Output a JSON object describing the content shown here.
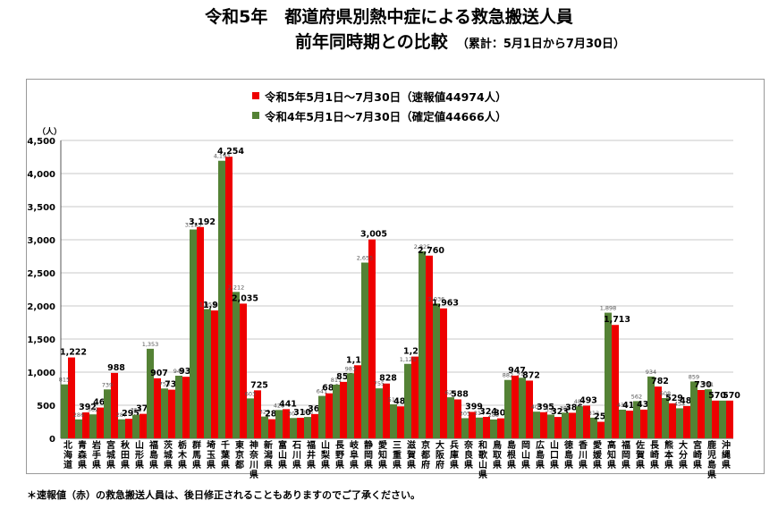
{
  "header": {
    "title_line1": "令和5年　都道府県別熱中症による救急搬送人員",
    "title_line2": "前年同時期との比較",
    "title_note": "（累計：5月1日から7月30日）"
  },
  "legend": {
    "items": [
      {
        "label": "令和5年5月1日～7月30日（速報値44974人）",
        "color": "#ee0000"
      },
      {
        "label": "令和4年5月1日～7月30日（確定値44666人）",
        "color": "#548235"
      }
    ]
  },
  "footnote": "＊速報値（赤）の救急搬送人員は、後日修正されることもありますのでご了承ください。",
  "chart_data": {
    "type": "bar",
    "ylabel": "（人）",
    "ylim": [
      0,
      4500
    ],
    "yticks": [
      "0",
      "500",
      "1,000",
      "1,500",
      "2,000",
      "2,500",
      "3,000",
      "3,500",
      "4,000",
      "4,500"
    ],
    "grid": true,
    "legend_position": "top-center",
    "categories": [
      "北海道",
      "青森県",
      "岩手県",
      "宮城県",
      "秋田県",
      "山形県",
      "福島県",
      "茨城県",
      "栃木県",
      "群馬県",
      "埼玉県",
      "千葉県",
      "東京都",
      "神奈川県",
      "新潟県",
      "富山県",
      "石川県",
      "福井県",
      "山梨県",
      "長野県",
      "岐阜県",
      "静岡県",
      "愛知県",
      "三重県",
      "滋賀県",
      "京都府",
      "大阪府",
      "兵庫県",
      "奈良県",
      "和歌山県",
      "鳥取県",
      "島根県",
      "岡山県",
      "広島県",
      "山口県",
      "徳島県",
      "香川県",
      "愛媛県",
      "高知県",
      "福岡県",
      "佐賀県",
      "長崎県",
      "熊本県",
      "大分県",
      "宮崎県",
      "鹿児島県",
      "沖縄県"
    ],
    "series": [
      {
        "name": "令和4年5月1日～7月30日（確定値44666人）",
        "color": "#548235",
        "values": [
          815,
          286,
          362,
          739,
          287,
          356,
          1353,
          753,
          946,
          3155,
          1953,
          4193,
          2212,
          603,
          329,
          428,
          307,
          323,
          641,
          811,
          983,
          2655,
          755,
          514,
          1125,
          2825,
          2036,
          620,
          305,
          314,
          285,
          882,
          915,
          403,
          359,
          388,
          484,
          312,
          1898,
          433,
          562,
          934,
          608,
          454,
          859,
          741,
          570
        ],
        "labels": [
          "815",
          "286",
          "362",
          "739",
          "287",
          "356",
          "1,353",
          "753",
          "946",
          "3,155",
          "1,953",
          "4,193",
          "2,212",
          "603",
          "329",
          "428",
          "307",
          "323",
          "641",
          "811",
          "983",
          "2,655",
          "755",
          "514",
          "1,125",
          "2,825",
          "2,036",
          "620",
          "305",
          "314",
          "285",
          "882",
          "915",
          "403",
          "359",
          "388",
          "484",
          "312",
          "1,898",
          "433",
          "562",
          "934",
          "608",
          "454",
          "859",
          "741",
          ""
        ]
      },
      {
        "name": "令和5年5月1日～7月30日（速報値44974人）",
        "color": "#ee0000",
        "values": [
          1222,
          392,
          465,
          988,
          295,
          370,
          907,
          735,
          930,
          3192,
          1932,
          4254,
          2035,
          725,
          289,
          441,
          310,
          367,
          680,
          853,
          1104,
          3005,
          828,
          483,
          1235,
          2760,
          1963,
          588,
          399,
          324,
          302,
          947,
          872,
          395,
          323,
          386,
          493,
          250,
          1713,
          418,
          434,
          782,
          529,
          487,
          730,
          570,
          570
        ],
        "labels": [
          "1,222",
          "392",
          "465",
          "988",
          "295",
          "370",
          "907",
          "735",
          "930",
          "3,192",
          "1,932",
          "4,254",
          "2,035",
          "725",
          "289",
          "441",
          "310",
          "367",
          "680",
          "853",
          "1,104",
          "3,005",
          "828",
          "483",
          "1,235",
          "2,760",
          "1,963",
          "588",
          "399",
          "324",
          "302",
          "947",
          "872",
          "395",
          "323",
          "386",
          "493",
          "250",
          "1,713",
          "418",
          "434",
          "782",
          "529",
          "487",
          "730",
          "570",
          "570"
        ]
      }
    ]
  }
}
